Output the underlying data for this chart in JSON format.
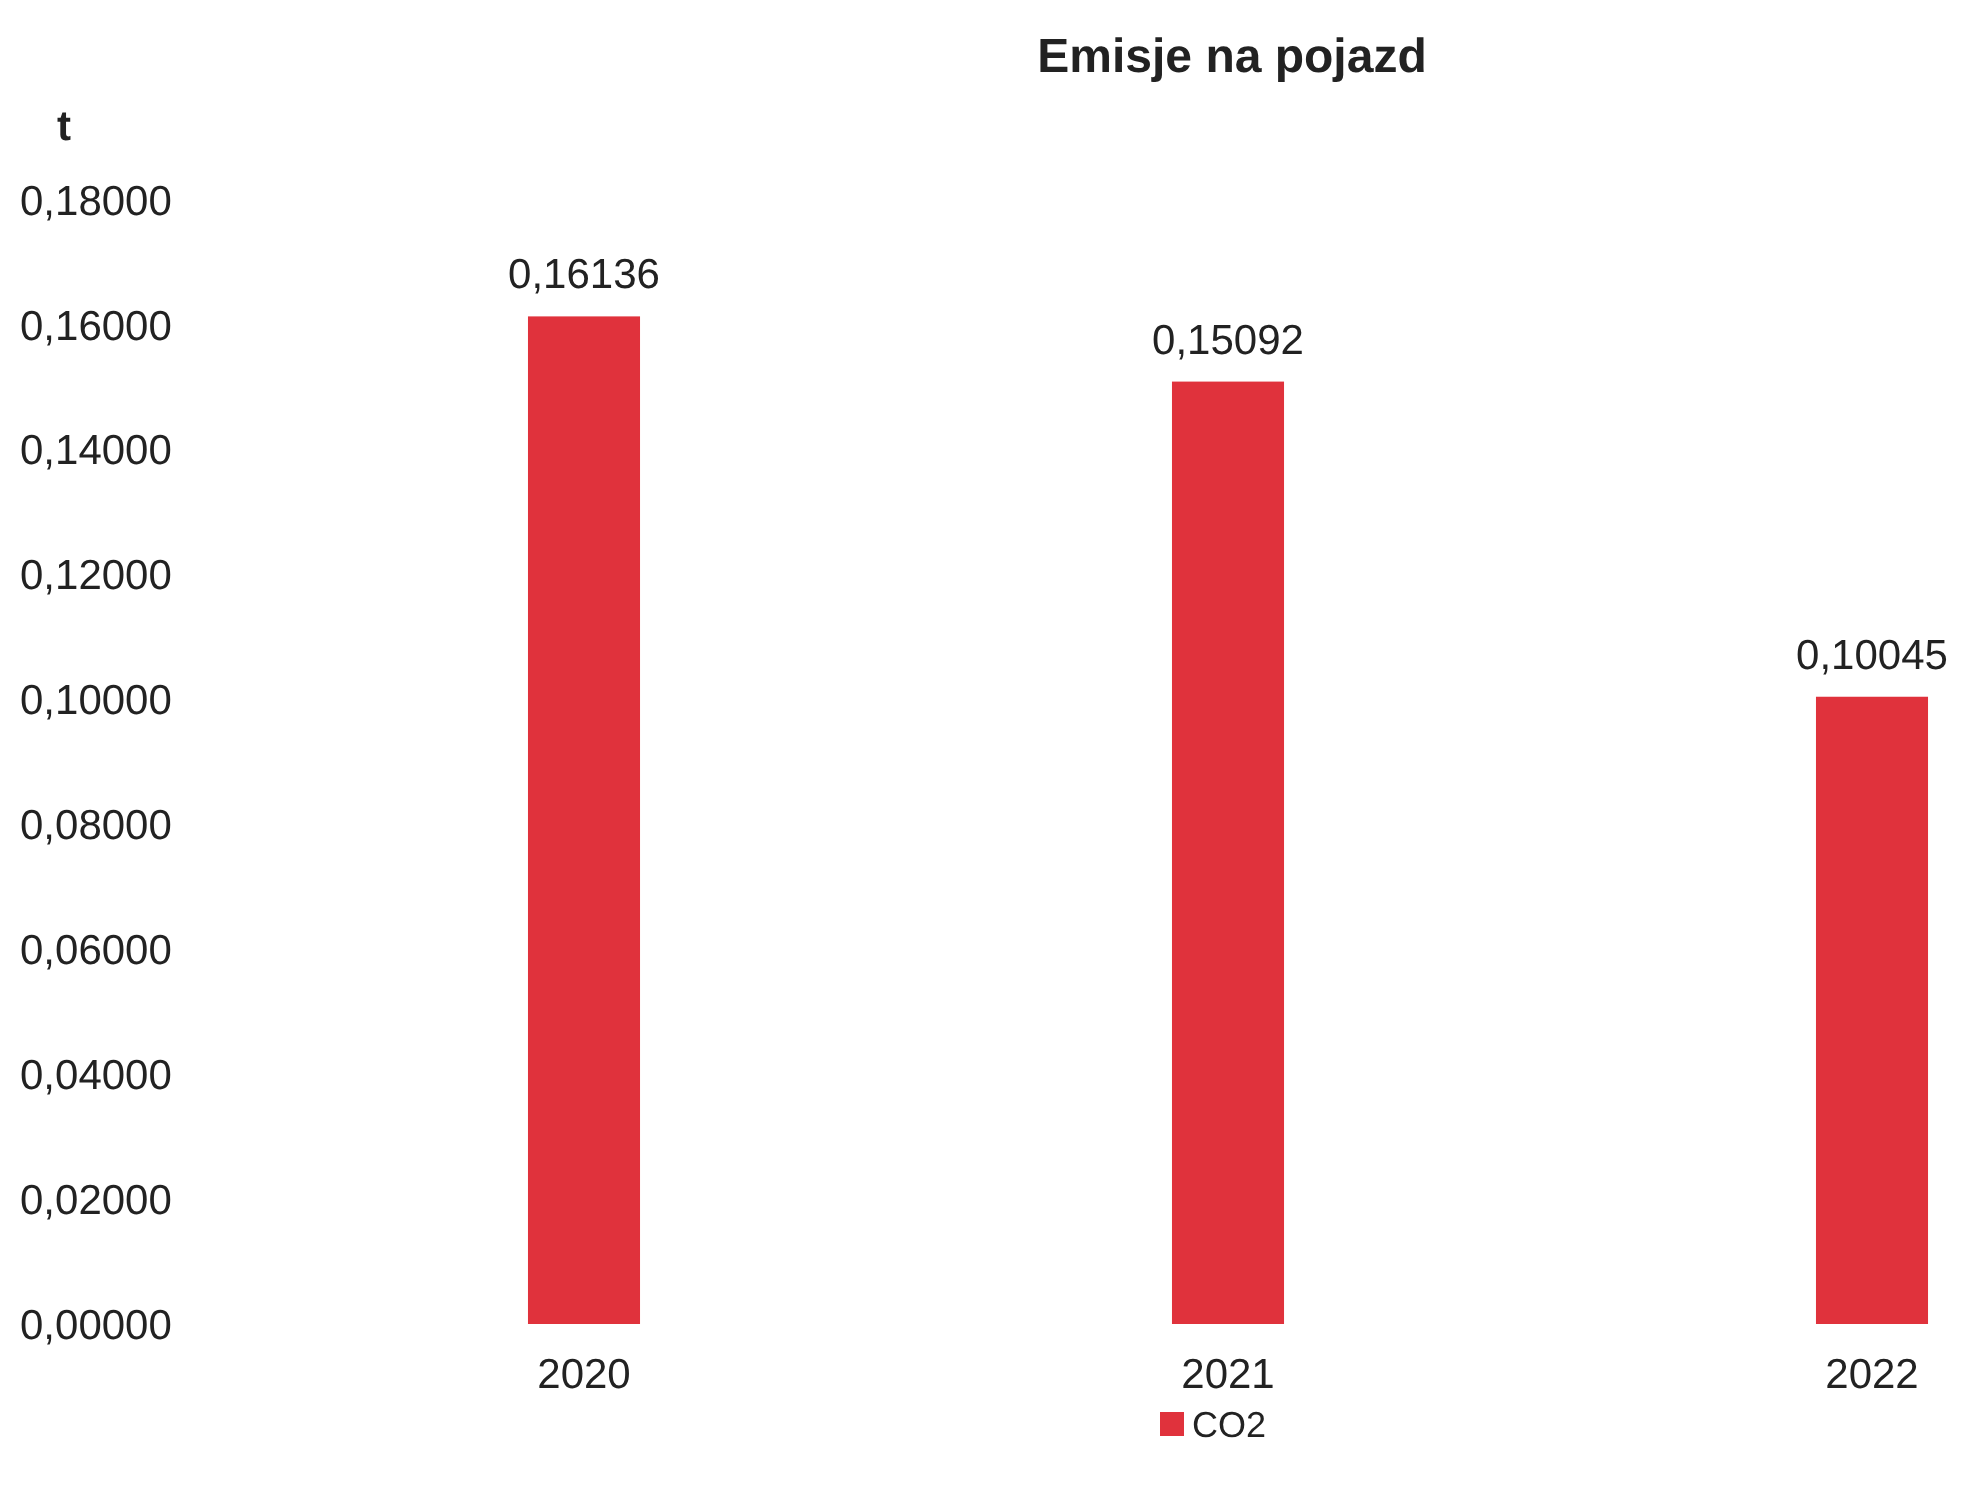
{
  "chart_data": {
    "type": "bar",
    "title": "Emisje na pojazd",
    "ylabel": "t",
    "categories": [
      "2020",
      "2021",
      "2022"
    ],
    "series": [
      {
        "name": "CO2",
        "color": "#e0323c",
        "values": [
          0.16136,
          0.15092,
          0.10045
        ],
        "value_labels": [
          "0,16136",
          "0,15092",
          "0,10045"
        ]
      }
    ],
    "ylim": [
      0,
      0.18
    ],
    "yticks": [
      {
        "value": 0,
        "label": "0,00000"
      },
      {
        "value": 0.02,
        "label": "0,02000"
      },
      {
        "value": 0.04,
        "label": "0,04000"
      },
      {
        "value": 0.06,
        "label": "0,06000"
      },
      {
        "value": 0.08,
        "label": "0,08000"
      },
      {
        "value": 0.1,
        "label": "0,10000"
      },
      {
        "value": 0.12,
        "label": "0,12000"
      },
      {
        "value": 0.14,
        "label": "0,14000"
      },
      {
        "value": 0.16,
        "label": "0,16000"
      },
      {
        "value": 0.18,
        "label": "0,18000"
      }
    ],
    "grid": false,
    "legend": "bottom"
  }
}
